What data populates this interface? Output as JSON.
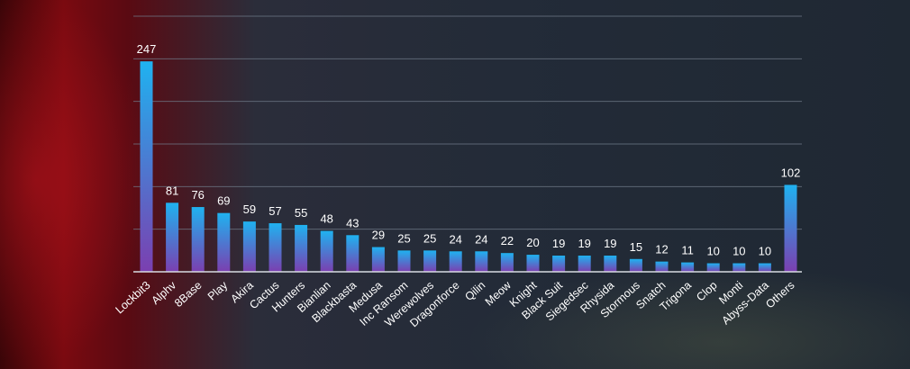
{
  "chart_data": {
    "type": "bar",
    "categories": [
      "Lockbit3",
      "Alphv",
      "8Base",
      "Play",
      "Akira",
      "Cactus",
      "Hunters",
      "Bianlian",
      "Blackbasta",
      "Medusa",
      "Inc Ransom",
      "Werewolves",
      "Dragonforce",
      "Qilin",
      "Meow",
      "Knight",
      "Black Suit",
      "Siegedsec",
      "Rhysida",
      "Stormous",
      "Snatch",
      "Trigona",
      "Clop",
      "Monti",
      "Abyss-Data",
      "Others"
    ],
    "values": [
      247,
      81,
      76,
      69,
      59,
      57,
      55,
      48,
      43,
      29,
      25,
      25,
      24,
      24,
      22,
      20,
      19,
      19,
      19,
      15,
      12,
      11,
      10,
      10,
      10,
      102
    ],
    "ylim": [
      0,
      300
    ],
    "grid": true,
    "legend": "none",
    "colors": {
      "bar_top": "#1fb2f0",
      "bar_bottom": "#7b3fb0",
      "grid": "#6f7a88",
      "axis": "#d7dbe2"
    }
  }
}
